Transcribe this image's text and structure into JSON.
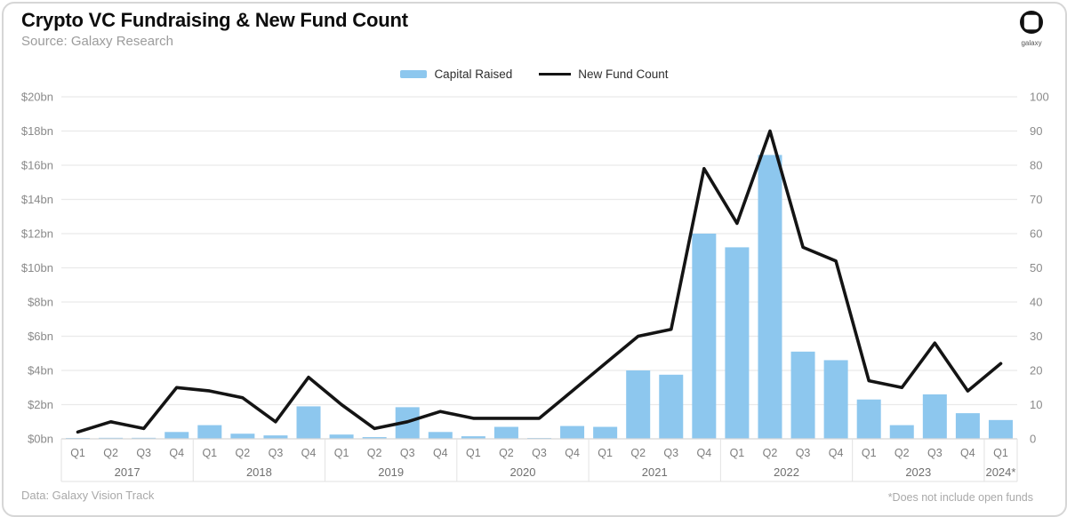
{
  "header": {
    "title": "Crypto VC Fundraising & New Fund Count",
    "source": "Source: Galaxy Research",
    "logo_text": "galaxy"
  },
  "footer": {
    "left_note": "Data: Galaxy Vision Track",
    "right_note": "*Does not include open funds"
  },
  "colors": {
    "bar": "#8DC7EE",
    "line": "#141414",
    "grid": "#eaeaea",
    "axis_line": "#d9d9d9",
    "band_line": "#e2e2e2"
  },
  "chart_data": {
    "type": "bar+line",
    "title": "Crypto VC Fundraising & New Fund Count",
    "legend_position": "top-center",
    "grid": "horizontal",
    "x_groups": [
      {
        "year": "2017",
        "quarters": [
          "Q1",
          "Q2",
          "Q3",
          "Q4"
        ]
      },
      {
        "year": "2018",
        "quarters": [
          "Q1",
          "Q2",
          "Q3",
          "Q4"
        ]
      },
      {
        "year": "2019",
        "quarters": [
          "Q1",
          "Q2",
          "Q3",
          "Q4"
        ]
      },
      {
        "year": "2020",
        "quarters": [
          "Q1",
          "Q2",
          "Q3",
          "Q4"
        ]
      },
      {
        "year": "2021",
        "quarters": [
          "Q1",
          "Q2",
          "Q3",
          "Q4"
        ]
      },
      {
        "year": "2022",
        "quarters": [
          "Q1",
          "Q2",
          "Q3",
          "Q4"
        ]
      },
      {
        "year": "2023",
        "quarters": [
          "Q1",
          "Q2",
          "Q3",
          "Q4"
        ]
      },
      {
        "year": "2024*",
        "quarters": [
          "Q1"
        ]
      }
    ],
    "series": [
      {
        "name": "Capital Raised",
        "type": "bar",
        "axis": "left",
        "unit": "$bn",
        "values": [
          0.02,
          0.06,
          0.06,
          0.4,
          0.8,
          0.3,
          0.2,
          1.9,
          0.25,
          0.1,
          1.85,
          0.4,
          0.15,
          0.7,
          0.05,
          0.75,
          0.7,
          4.0,
          3.75,
          12.0,
          11.2,
          16.6,
          5.1,
          4.6,
          2.3,
          0.8,
          2.6,
          1.5,
          1.1
        ]
      },
      {
        "name": "New Fund Count",
        "type": "line",
        "axis": "right",
        "unit": "funds",
        "values": [
          2,
          5,
          3,
          15,
          14,
          12,
          5,
          18,
          10,
          3,
          5,
          8,
          6,
          6,
          6,
          14,
          22,
          30,
          32,
          79,
          63,
          90,
          56,
          52,
          17,
          15,
          28,
          14,
          22
        ]
      }
    ],
    "y_left": {
      "min": 0,
      "max": 20,
      "step": 2,
      "tick_labels": [
        "$0bn",
        "$2bn",
        "$4bn",
        "$6bn",
        "$8bn",
        "$10bn",
        "$12bn",
        "$14bn",
        "$16bn",
        "$18bn",
        "$20bn"
      ]
    },
    "y_right": {
      "min": 0,
      "max": 100,
      "step": 10,
      "tick_labels": [
        "0",
        "10",
        "20",
        "30",
        "40",
        "50",
        "60",
        "70",
        "80",
        "90",
        "100"
      ]
    }
  }
}
